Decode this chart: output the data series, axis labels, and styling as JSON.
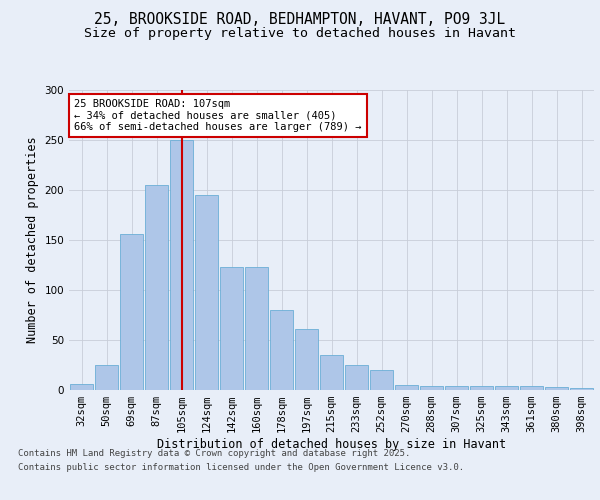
{
  "title_line1": "25, BROOKSIDE ROAD, BEDHAMPTON, HAVANT, PO9 3JL",
  "title_line2": "Size of property relative to detached houses in Havant",
  "xlabel": "Distribution of detached houses by size in Havant",
  "ylabel": "Number of detached properties",
  "categories": [
    "32sqm",
    "50sqm",
    "69sqm",
    "87sqm",
    "105sqm",
    "124sqm",
    "142sqm",
    "160sqm",
    "178sqm",
    "197sqm",
    "215sqm",
    "233sqm",
    "252sqm",
    "270sqm",
    "288sqm",
    "307sqm",
    "325sqm",
    "343sqm",
    "361sqm",
    "380sqm",
    "398sqm"
  ],
  "values": [
    6,
    25,
    156,
    205,
    250,
    195,
    123,
    123,
    80,
    61,
    35,
    25,
    20,
    5,
    4,
    4,
    4,
    4,
    4,
    3,
    2
  ],
  "bar_color": "#aec6e8",
  "bar_edge_color": "#6baed6",
  "annotation_line1": "25 BROOKSIDE ROAD: 107sqm",
  "annotation_line2": "← 34% of detached houses are smaller (405)",
  "annotation_line3": "66% of semi-detached houses are larger (789) →",
  "vline_index": 4,
  "vline_color": "#cc0000",
  "background_color": "#e8eef8",
  "footer_line1": "Contains HM Land Registry data © Crown copyright and database right 2025.",
  "footer_line2": "Contains public sector information licensed under the Open Government Licence v3.0.",
  "ylim": [
    0,
    300
  ],
  "yticks": [
    0,
    50,
    100,
    150,
    200,
    250,
    300
  ],
  "grid_color": "#c8cdd8",
  "title_fontsize": 10.5,
  "subtitle_fontsize": 9.5,
  "axis_label_fontsize": 8.5,
  "tick_fontsize": 7.5,
  "annotation_fontsize": 7.5,
  "footer_fontsize": 6.5
}
